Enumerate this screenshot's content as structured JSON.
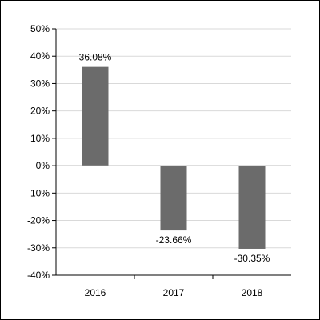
{
  "chart_data": {
    "type": "bar",
    "title": "",
    "xlabel": "",
    "ylabel": "",
    "categories": [
      "2016",
      "2017",
      "2018"
    ],
    "values": [
      36.08,
      -23.66,
      -30.35
    ],
    "data_labels": [
      "36.08%",
      "-23.66%",
      "-30.35%"
    ],
    "ylim": [
      -40,
      50
    ],
    "y_ticks": [
      50,
      40,
      30,
      20,
      10,
      0,
      -10,
      -20,
      -30,
      -40
    ],
    "y_tick_labels": [
      "50%",
      "40%",
      "30%",
      "20%",
      "10%",
      "0%",
      "-10%",
      "-20%",
      "-30%",
      "-40%"
    ],
    "grid": true,
    "bar_color": "#6b6b6b",
    "grid_color": "#d9d9d9",
    "axis_color": "#000000"
  }
}
